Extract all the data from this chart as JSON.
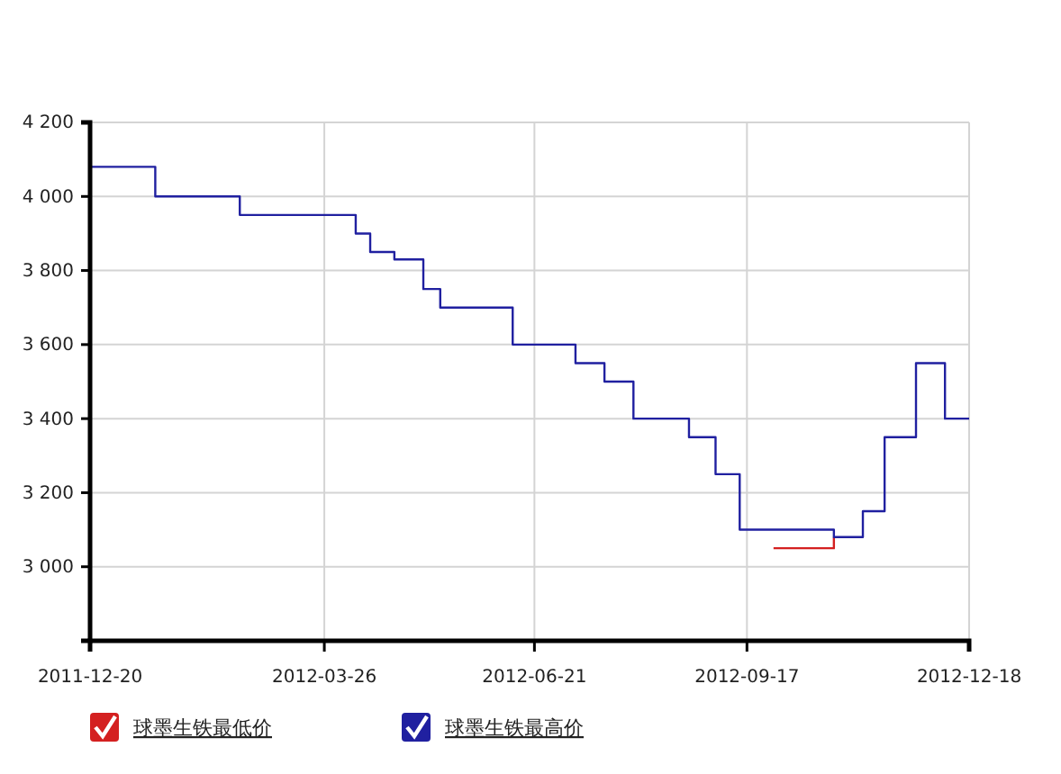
{
  "chart_data": {
    "type": "step",
    "series": [
      {
        "name": "球墨生铁最低价",
        "color": "#d42020",
        "x": [
          "2012-09-28",
          "2012-10-23"
        ],
        "values": [
          3050,
          3080
        ]
      },
      {
        "name": "球墨生铁最高价",
        "color": "#2020a0",
        "x": [
          "2011-12-20",
          "2012-01-16",
          "2012-02-20",
          "2012-04-08",
          "2012-04-14",
          "2012-04-24",
          "2012-05-06",
          "2012-05-13",
          "2012-06-12",
          "2012-07-08",
          "2012-07-20",
          "2012-08-01",
          "2012-08-24",
          "2012-09-04",
          "2012-09-14",
          "2012-10-23",
          "2012-11-04",
          "2012-11-13",
          "2012-11-26",
          "2012-12-08",
          "2012-12-18"
        ],
        "values": [
          4080,
          4000,
          3950,
          3900,
          3850,
          3830,
          3750,
          3700,
          3600,
          3550,
          3500,
          3400,
          3350,
          3250,
          3100,
          3080,
          3150,
          3350,
          3550,
          3400,
          3400
        ]
      }
    ],
    "xlim": [
      "2011-12-20",
      "2012-12-18"
    ],
    "xticks": [
      "2011-12-20",
      "2012-03-26",
      "2012-06-21",
      "2012-09-17",
      "2012-12-18"
    ],
    "ylim": [
      2800,
      4200
    ],
    "yticks": [
      {
        "value": 3000,
        "label": "3 000"
      },
      {
        "value": 3200,
        "label": "3 200"
      },
      {
        "value": 3400,
        "label": "3 400"
      },
      {
        "value": 3600,
        "label": "3 600"
      },
      {
        "value": 3800,
        "label": "3 800"
      },
      {
        "value": 4000,
        "label": "4 000"
      },
      {
        "value": 4200,
        "label": "4 200"
      }
    ],
    "grid": true,
    "legend": "bottom left"
  }
}
